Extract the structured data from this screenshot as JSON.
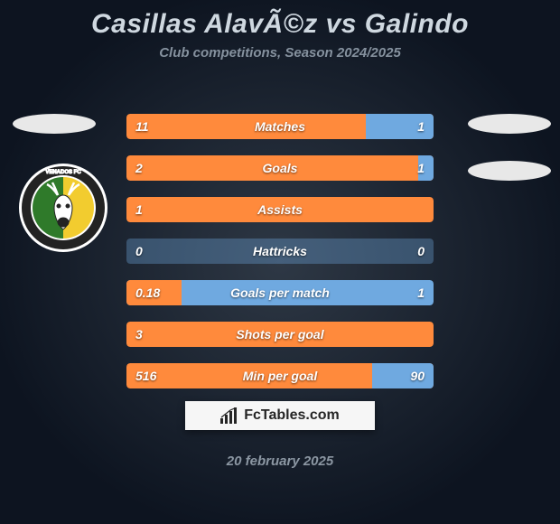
{
  "title": "Casillas AlavÃ©z vs Galindo",
  "subtitle": "Club competitions, Season 2024/2025",
  "date": "20 february 2025",
  "logo": {
    "text": "FcTables.com"
  },
  "colors": {
    "left_team": "#ff8a3c",
    "right_team": "#6fa9e0",
    "row_bg": "#ff8a3c",
    "badge_white": "#ffffff",
    "badge_dark": "#232323",
    "badge_green": "#2f7a2a",
    "badge_yellow": "#f2cc2f"
  },
  "badge": {
    "outer_ring_text_top": "VENADOS FC",
    "center_stripe_left": "#2f7a2a",
    "center_stripe_right": "#f2cc2f",
    "deer_color": "#ffffff"
  },
  "stats": [
    {
      "label": "Matches",
      "left_val": "11",
      "right_val": "1",
      "left_pct": 78,
      "right_pct": 22
    },
    {
      "label": "Goals",
      "left_val": "2",
      "right_val": "1",
      "left_pct": 95,
      "right_pct": 5
    },
    {
      "label": "Assists",
      "left_val": "1",
      "right_val": "",
      "left_pct": 100,
      "right_pct": 0
    },
    {
      "label": "Hattricks",
      "left_val": "0",
      "right_val": "0",
      "left_pct": 0,
      "right_pct": 0,
      "neutral": true
    },
    {
      "label": "Goals per match",
      "left_val": "0.18",
      "right_val": "1",
      "left_pct": 18,
      "right_pct": 82,
      "right_fill_primary": true
    },
    {
      "label": "Shots per goal",
      "left_val": "3",
      "right_val": "",
      "left_pct": 100,
      "right_pct": 0
    },
    {
      "label": "Min per goal",
      "left_val": "516",
      "right_val": "90",
      "left_pct": 80,
      "right_pct": 20
    }
  ]
}
